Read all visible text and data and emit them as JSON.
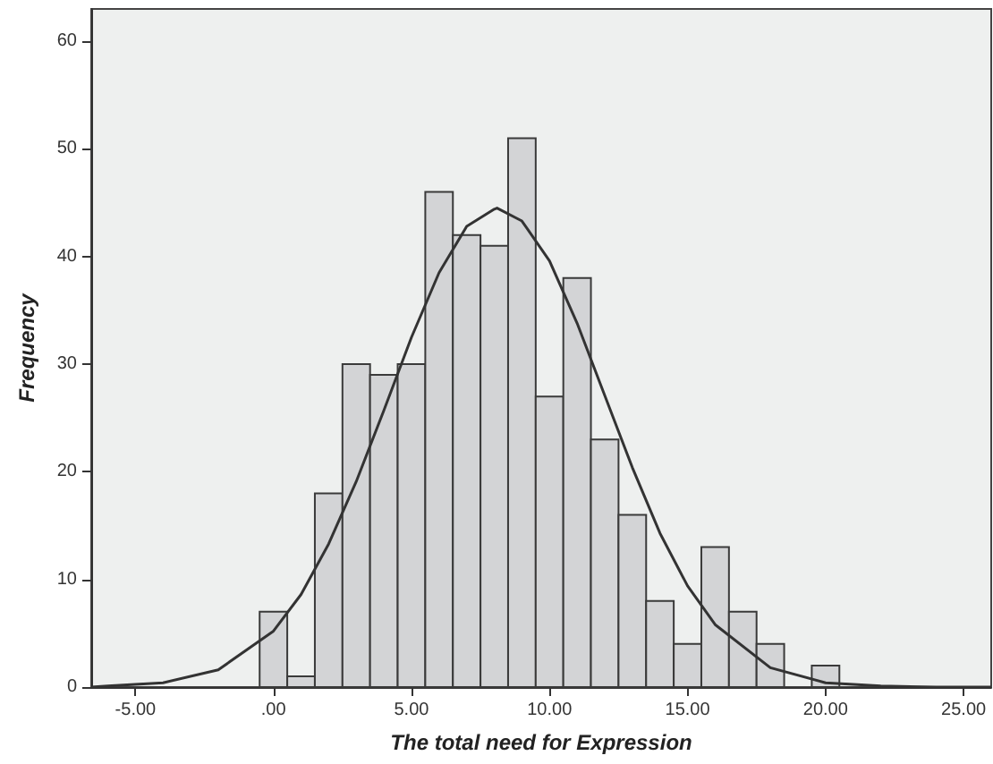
{
  "chart_data": {
    "type": "histogram",
    "xlabel": "The total need for Expression",
    "ylabel": "Frequency",
    "bins": [
      -0.5,
      0.5,
      1.5,
      2.5,
      3.5,
      4.5,
      5.5,
      6.5,
      7.5,
      8.5,
      9.5,
      10.5,
      11.5,
      12.5,
      13.5,
      14.5,
      15.5,
      16.5,
      17.5,
      18.5,
      19.5,
      20.5
    ],
    "values": [
      7,
      1,
      18,
      30,
      29,
      30,
      46,
      42,
      41,
      51,
      27,
      38,
      23,
      16,
      8,
      4,
      13,
      7,
      4,
      0,
      2
    ],
    "color": "#d3d4d6",
    "series": [
      {
        "type": "line",
        "color": "#333333",
        "x": [
          -6.6,
          -6,
          -4,
          -2,
          0,
          1,
          2,
          3,
          4,
          5,
          6,
          7,
          8,
          8.1,
          9,
          10,
          11,
          12,
          13,
          14,
          15,
          16,
          18,
          20,
          22,
          24,
          26
        ],
        "values": [
          0,
          0.1,
          0.4,
          1.6,
          5.2,
          8.6,
          13.3,
          19.1,
          25.7,
          32.5,
          38.5,
          42.8,
          44.4,
          44.5,
          43.3,
          39.6,
          33.8,
          27.1,
          20.4,
          14.3,
          9.4,
          5.8,
          1.8,
          0.4,
          0.1,
          0,
          0
        ]
      }
    ],
    "xlim": [
      -6.6,
      26
    ],
    "ylim": [
      0,
      63
    ],
    "xticks": [
      {
        "value": -5,
        "label": "-5.00"
      },
      {
        "value": 0,
        "label": ".00"
      },
      {
        "value": 5,
        "label": "5.00"
      },
      {
        "value": 10,
        "label": "10.00"
      },
      {
        "value": 15,
        "label": "15.00"
      },
      {
        "value": 20,
        "label": "20.00"
      },
      {
        "value": 25,
        "label": "25.00"
      }
    ],
    "yticks": [
      0,
      10,
      20,
      30,
      40,
      50,
      60
    ],
    "grid": false,
    "legend": false,
    "marker": "none",
    "line_style": "solid"
  }
}
